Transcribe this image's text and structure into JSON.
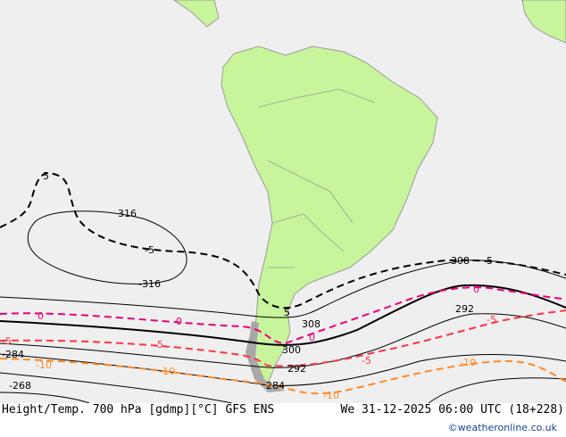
{
  "colors": {
    "sea": "#efefef",
    "land": "#c8f59c",
    "border": "#9a9a9a",
    "height": "#000000",
    "t0": "#e8007a",
    "tm5": "#ff3344",
    "tm10": "#ff8822"
  },
  "labels": {
    "h316a": "316",
    "h316b": "-316",
    "h308a": "308",
    "h308b": "308",
    "h300": "300",
    "h292a": "292",
    "h292b": "292",
    "h284a": "-284",
    "h284b": "284",
    "h268": "-268",
    "t5a": "5",
    "t5b": "-5",
    "t5c": "5",
    "t5d": "5",
    "t0a": "0",
    "t0b": "0",
    "t0c": "0",
    "t0d": "0",
    "tm5a": "-5",
    "tm5b": "-5",
    "tm5c": "-5",
    "tm5d": "-5",
    "tm10a": "-10",
    "tm10b": "-10",
    "tm10c": "-10",
    "tm10d": "-10"
  },
  "footer": {
    "title": "Height/Temp. 700 hPa [gdmp][°C] GFS ENS",
    "datetime": "We 31-12-2025 06:00 UTC (18+228)",
    "credit": "©weatheronline.co.uk"
  }
}
